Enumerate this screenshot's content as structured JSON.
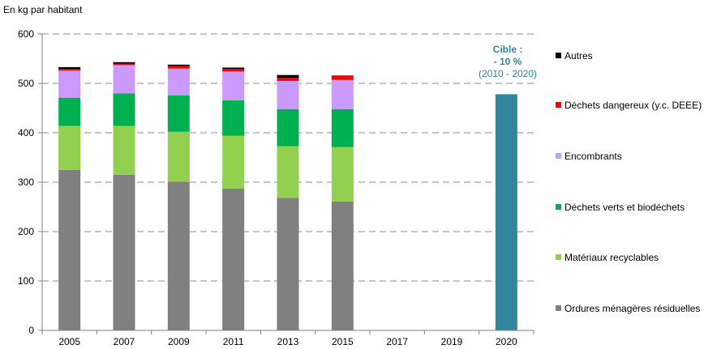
{
  "chart_data": {
    "type": "bar",
    "stacked": true,
    "ylabel": "En kg par habitant",
    "ylim": [
      0,
      600
    ],
    "yticks": [
      0,
      100,
      200,
      300,
      400,
      500,
      600
    ],
    "grid": "horizontal-dashed",
    "legend_placement": "right",
    "categories": [
      "2005",
      "2007",
      "2009",
      "2011",
      "2013",
      "2015",
      "2017",
      "2019",
      "2020"
    ],
    "series": [
      {
        "name": "Ordures ménagères résiduelles",
        "color": "#808080",
        "values": [
          325,
          315,
          301,
          287,
          268,
          261,
          null,
          null,
          null
        ]
      },
      {
        "name": "Matériaux recyclables",
        "color": "#92D050",
        "values": [
          89,
          99,
          101,
          107,
          105,
          110,
          null,
          null,
          null
        ]
      },
      {
        "name": "Déchets verts et biodéchets",
        "color": "#00B050",
        "values": [
          57,
          66,
          74,
          72,
          75,
          77,
          null,
          null,
          null
        ]
      },
      {
        "name": "Encombrants",
        "color": "#CC99FF",
        "values": [
          55,
          57,
          54,
          58,
          57,
          59,
          null,
          null,
          null
        ]
      },
      {
        "name": "Déchets dangereux (y.c. DEEE)",
        "color": "#FF0000",
        "values": [
          3,
          3,
          5,
          5,
          6,
          8,
          null,
          null,
          null
        ]
      },
      {
        "name": "Autres",
        "color": "#000000",
        "values": [
          4,
          3,
          3,
          3,
          6,
          1,
          null,
          null,
          null
        ]
      }
    ],
    "target": {
      "category": "2020",
      "value": 478,
      "color": "#31859C",
      "label_line1": "Cible :",
      "label_line2": "- 10 %",
      "label_line3": "(2010 - 2020)"
    }
  }
}
